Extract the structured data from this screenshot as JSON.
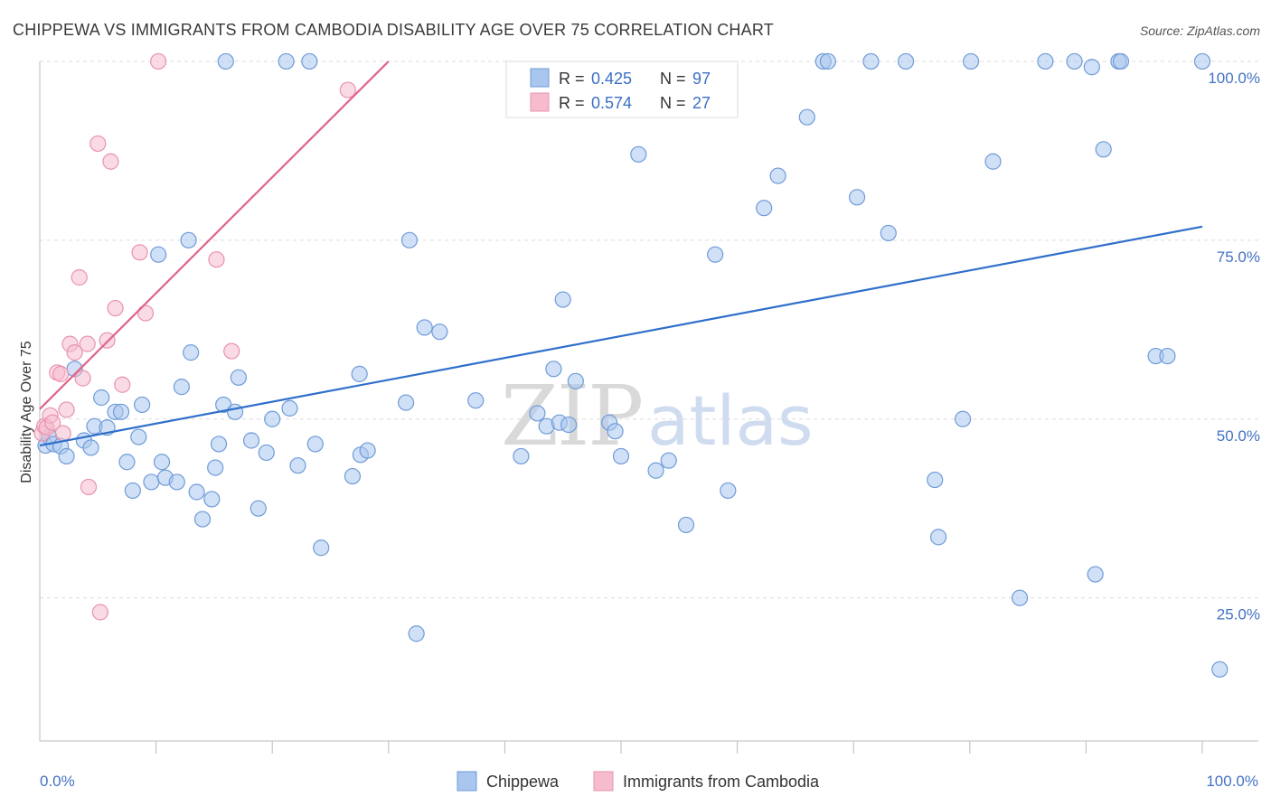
{
  "chart_data": {
    "type": "scatter",
    "title": "CHIPPEWA VS IMMIGRANTS FROM CAMBODIA DISABILITY AGE OVER 75 CORRELATION CHART",
    "source": "Source: ZipAtlas.com",
    "ylabel": "Disability Age Over 75",
    "xlabel": "",
    "xlim": [
      0,
      100
    ],
    "ylim": [
      5,
      101
    ],
    "x_tick_labels": [
      {
        "value": 0,
        "label": "0.0%"
      },
      {
        "value": 100,
        "label": "100.0%"
      }
    ],
    "y_tick_labels": [
      {
        "value": 100,
        "label": "100.0%"
      },
      {
        "value": 75,
        "label": "75.0%"
      },
      {
        "value": 50,
        "label": "50.0%"
      },
      {
        "value": 25,
        "label": "25.0%"
      }
    ],
    "watermark": {
      "part1": "ZIP",
      "part2": "atlas"
    },
    "colors": {
      "chippewa_fill": "#a9c6ee",
      "chippewa_stroke": "#6f9bd8",
      "chippewa_line": "#2f6fca",
      "cambodia_fill": "#f6bccd",
      "cambodia_stroke": "#e893ad",
      "cambodia_line": "#e0648b"
    },
    "legend": {
      "rows": [
        {
          "r_label": "R =",
          "r_value": "0.425",
          "n_label": "N =",
          "n_value": "97"
        },
        {
          "r_label": "R =",
          "r_value": "0.574",
          "n_label": "N =",
          "n_value": "27"
        }
      ]
    },
    "series": [
      {
        "name": "Chippewa",
        "trend": {
          "x": [
            0,
            100
          ],
          "y": [
            46.3,
            76.9
          ]
        },
        "points": [
          [
            0.5,
            46.3
          ],
          [
            0.8,
            47.5
          ],
          [
            1.2,
            46.5
          ],
          [
            1.8,
            46.2
          ],
          [
            2.3,
            44.8
          ],
          [
            3.0,
            57.0
          ],
          [
            3.8,
            47.0
          ],
          [
            4.4,
            46.0
          ],
          [
            4.7,
            49.0
          ],
          [
            5.3,
            53.0
          ],
          [
            5.8,
            48.8
          ],
          [
            6.5,
            51.0
          ],
          [
            7.0,
            51.0
          ],
          [
            7.5,
            44.0
          ],
          [
            8.0,
            40.0
          ],
          [
            8.5,
            47.5
          ],
          [
            8.8,
            52.0
          ],
          [
            9.6,
            41.2
          ],
          [
            10.2,
            73.0
          ],
          [
            10.5,
            44.0
          ],
          [
            10.8,
            41.8
          ],
          [
            11.8,
            41.2
          ],
          [
            12.2,
            54.5
          ],
          [
            12.8,
            75.0
          ],
          [
            13.0,
            59.3
          ],
          [
            13.5,
            39.8
          ],
          [
            14.0,
            36.0
          ],
          [
            14.8,
            38.8
          ],
          [
            15.1,
            43.2
          ],
          [
            15.4,
            46.5
          ],
          [
            15.8,
            52.0
          ],
          [
            16.0,
            100.0
          ],
          [
            16.8,
            51.0
          ],
          [
            17.1,
            55.8
          ],
          [
            18.2,
            47.0
          ],
          [
            18.8,
            37.5
          ],
          [
            19.5,
            45.3
          ],
          [
            20.0,
            50.0
          ],
          [
            21.2,
            100.0
          ],
          [
            21.5,
            51.5
          ],
          [
            22.2,
            43.5
          ],
          [
            23.2,
            100.0
          ],
          [
            23.7,
            46.5
          ],
          [
            24.2,
            32.0
          ],
          [
            26.9,
            42.0
          ],
          [
            27.5,
            56.3
          ],
          [
            27.6,
            45.0
          ],
          [
            28.2,
            45.6
          ],
          [
            31.5,
            52.3
          ],
          [
            31.8,
            75.0
          ],
          [
            32.4,
            20.0
          ],
          [
            33.1,
            62.8
          ],
          [
            34.4,
            62.2
          ],
          [
            37.5,
            52.6
          ],
          [
            41.4,
            44.8
          ],
          [
            42.8,
            50.8
          ],
          [
            43.6,
            49.0
          ],
          [
            44.2,
            57.0
          ],
          [
            44.7,
            49.5
          ],
          [
            45.0,
            66.7
          ],
          [
            45.5,
            49.2
          ],
          [
            46.1,
            55.3
          ],
          [
            49.0,
            49.5
          ],
          [
            49.5,
            48.3
          ],
          [
            50.0,
            44.8
          ],
          [
            51.5,
            87.0
          ],
          [
            53.0,
            42.8
          ],
          [
            54.1,
            44.2
          ],
          [
            55.6,
            35.2
          ],
          [
            58.1,
            73.0
          ],
          [
            59.2,
            40.0
          ],
          [
            62.3,
            79.5
          ],
          [
            63.5,
            84.0
          ],
          [
            66.0,
            92.2
          ],
          [
            67.4,
            100.0
          ],
          [
            67.8,
            100.0
          ],
          [
            70.3,
            81.0
          ],
          [
            71.5,
            100.0
          ],
          [
            73.0,
            76.0
          ],
          [
            74.5,
            100.0
          ],
          [
            77.0,
            41.5
          ],
          [
            77.3,
            33.5
          ],
          [
            79.4,
            50.0
          ],
          [
            80.1,
            100.0
          ],
          [
            82.0,
            86.0
          ],
          [
            84.3,
            25.0
          ],
          [
            86.5,
            100.0
          ],
          [
            89.0,
            100.0
          ],
          [
            90.8,
            28.3
          ],
          [
            91.5,
            87.7
          ],
          [
            92.8,
            100.0
          ],
          [
            93.0,
            100.0
          ],
          [
            96.0,
            58.8
          ],
          [
            97.0,
            58.8
          ],
          [
            100.0,
            100.0
          ],
          [
            101.5,
            15.0
          ],
          [
            90.5,
            99.2
          ]
        ]
      },
      {
        "name": "Immigrants from Cambodia",
        "trend": {
          "x": [
            0,
            30
          ],
          "y": [
            51.4,
            100.0
          ]
        },
        "points": [
          [
            0.2,
            48.0
          ],
          [
            0.4,
            49.0
          ],
          [
            0.6,
            48.8
          ],
          [
            0.9,
            50.5
          ],
          [
            1.1,
            49.5
          ],
          [
            1.5,
            56.5
          ],
          [
            1.8,
            56.3
          ],
          [
            2.0,
            48.0
          ],
          [
            2.3,
            51.3
          ],
          [
            2.6,
            60.5
          ],
          [
            3.0,
            59.3
          ],
          [
            3.4,
            69.8
          ],
          [
            3.7,
            55.7
          ],
          [
            4.1,
            60.5
          ],
          [
            4.2,
            40.5
          ],
          [
            5.0,
            88.5
          ],
          [
            5.2,
            23.0
          ],
          [
            5.8,
            61.0
          ],
          [
            6.1,
            86.0
          ],
          [
            6.5,
            65.5
          ],
          [
            7.1,
            54.8
          ],
          [
            8.6,
            73.3
          ],
          [
            9.1,
            64.8
          ],
          [
            10.2,
            100.0
          ],
          [
            15.2,
            72.3
          ],
          [
            16.5,
            59.5
          ],
          [
            26.5,
            96.0
          ]
        ]
      }
    ]
  }
}
